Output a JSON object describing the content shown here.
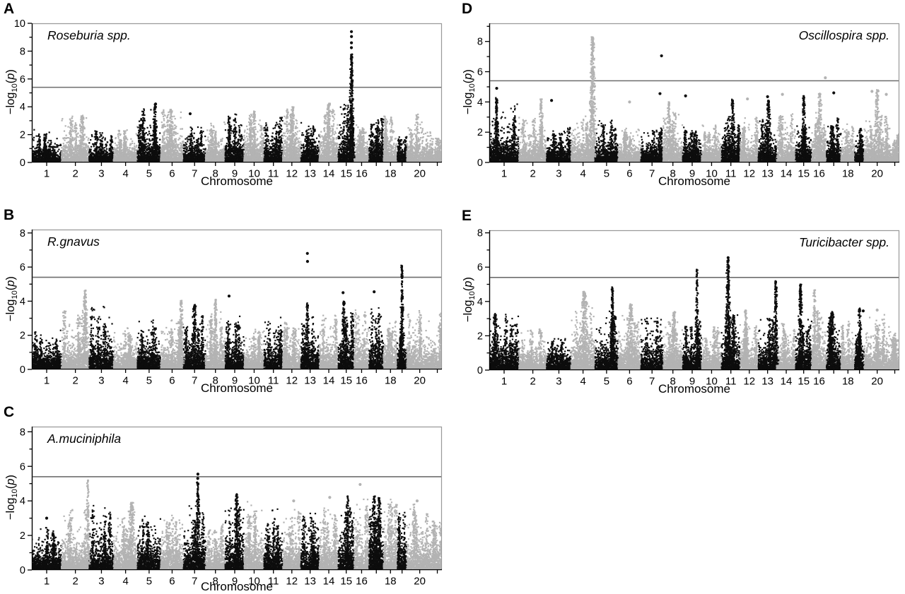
{
  "chart_data": {
    "type": "scatter",
    "figure_kind": "manhattan-gwas-panels",
    "xlabel": "Chromosome",
    "ylabel": {
      "pre": "−log",
      "sub": "10",
      "open": "(",
      "var": "p",
      "close": ")"
    },
    "colors": {
      "point_odd_chrom": "#0d0d0d",
      "point_even_chrom": "#b3b3b3",
      "significance_line": "#6e6e6e",
      "axis": "#000000",
      "border_light": "#999999",
      "text": "#000000",
      "background": "#ffffff"
    },
    "chrom_sizes": [
      195,
      182,
      160,
      157,
      152,
      150,
      145,
      129,
      124,
      131,
      122,
      120,
      120,
      125,
      104,
      98,
      95,
      91,
      61,
      171,
      60
    ],
    "xtick_labels": [
      "1",
      "2",
      "3",
      "4",
      "5",
      "6",
      "7",
      "8",
      "9",
      "10",
      "11",
      "12",
      "13",
      "14",
      "15",
      "16",
      "",
      "18",
      "",
      "20",
      ""
    ],
    "point_density": 4.3,
    "panels": [
      {
        "letter": "A",
        "title": "Roseburia spp.",
        "title_side": "left",
        "ylim": [
          0,
          10
        ],
        "y_axis_max": 10.0,
        "yticks": [
          0,
          2,
          4,
          6,
          8,
          10
        ],
        "yminor": [
          1,
          3,
          5,
          7,
          9
        ],
        "sig_line": 5.4,
        "base_max": [
          2.4,
          3.5,
          2.3,
          2.6,
          4.2,
          3.8,
          2.6,
          2.9,
          3.6,
          3.8,
          3.3,
          4.1,
          3.0,
          4.3,
          4.6,
          2.8,
          3.5,
          3.4,
          2.2,
          3.5,
          2.0
        ],
        "spikes": [
          {
            "c": 15,
            "f": 0.83,
            "h": 7.8,
            "w": 4.5,
            "n": 340
          },
          {
            "c": 5,
            "f": 0.75,
            "h": 4.2,
            "w": 4,
            "n": 140
          },
          {
            "c": 6,
            "f": 0.45,
            "h": 3.8,
            "w": 5,
            "n": 150
          },
          {
            "c": 10,
            "f": 0.5,
            "h": 3.7,
            "w": 4,
            "n": 120
          },
          {
            "c": 12,
            "f": 0.55,
            "h": 4.0,
            "w": 4,
            "n": 130
          },
          {
            "c": 14,
            "f": 0.5,
            "h": 4.25,
            "w": 4,
            "n": 140
          },
          {
            "c": 2,
            "f": 0.75,
            "h": 3.4,
            "w": 6,
            "n": 150
          }
        ],
        "dots": [
          {
            "c": 15,
            "f": 0.829,
            "v": 9.4
          },
          {
            "c": 15,
            "f": 0.832,
            "v": 9.05
          },
          {
            "c": 15,
            "f": 0.83,
            "v": 8.6
          },
          {
            "c": 15,
            "f": 0.827,
            "v": 8.25
          },
          {
            "c": 7,
            "f": 0.3,
            "v": 3.5
          },
          {
            "c": 5,
            "f": 0.78,
            "v": 4.2
          }
        ]
      },
      {
        "letter": "B",
        "title": "R.gnavus",
        "title_side": "left",
        "ylim": [
          0,
          8
        ],
        "y_axis_max": 8.2,
        "yticks": [
          0,
          2,
          4,
          6,
          8
        ],
        "yminor": [
          1,
          3,
          5,
          7
        ],
        "sig_line": 5.4,
        "base_max": [
          2.3,
          3.5,
          3.7,
          2.6,
          3.1,
          3.3,
          3.2,
          3.5,
          3.3,
          2.8,
          3.2,
          2.9,
          3.2,
          3.3,
          3.8,
          3.9,
          3.9,
          3.0,
          2.5,
          3.6,
          3.3
        ],
        "spikes": [
          {
            "c": 2,
            "f": 0.85,
            "h": 4.65,
            "w": 6,
            "n": 260
          },
          {
            "c": 6,
            "f": 0.9,
            "h": 4.1,
            "w": 4.5,
            "n": 170
          },
          {
            "c": 7,
            "f": 0.5,
            "h": 3.8,
            "w": 6,
            "n": 160
          },
          {
            "c": 8,
            "f": 0.5,
            "h": 4.1,
            "w": 4,
            "n": 140
          },
          {
            "c": 13,
            "f": 0.35,
            "h": 3.9,
            "w": 4,
            "n": 120
          },
          {
            "c": 15,
            "f": 0.35,
            "h": 4.0,
            "w": 5,
            "n": 130
          },
          {
            "c": 19,
            "f": 0.5,
            "h": 6.1,
            "w": 3.2,
            "n": 230
          }
        ],
        "dots": [
          {
            "c": 13,
            "f": 0.35,
            "v": 6.8
          },
          {
            "c": 13,
            "f": 0.357,
            "v": 6.33
          },
          {
            "c": 15,
            "f": 0.3,
            "v": 4.5
          },
          {
            "c": 17,
            "f": 0.35,
            "v": 4.55
          },
          {
            "c": 9,
            "f": 0.2,
            "v": 4.3
          }
        ]
      },
      {
        "letter": "C",
        "title": "A.muciniphila",
        "title_side": "left",
        "ylim": [
          0,
          8
        ],
        "y_axis_max": 8.3,
        "yticks": [
          0,
          2,
          4,
          6,
          8
        ],
        "yminor": [
          1,
          3,
          5,
          7
        ],
        "sig_line": 5.4,
        "base_max": [
          2.6,
          3.6,
          3.9,
          3.4,
          3.5,
          3.4,
          3.8,
          2.9,
          4.4,
          4.1,
          3.6,
          3.6,
          3.5,
          3.8,
          3.9,
          4.4,
          3.8,
          4.3,
          3.5,
          4.0,
          3.0
        ],
        "spikes": [
          {
            "c": 2,
            "f": 0.95,
            "h": 5.2,
            "w": 3,
            "n": 140
          },
          {
            "c": 4,
            "f": 0.75,
            "h": 3.9,
            "w": 8,
            "n": 220
          },
          {
            "c": 7,
            "f": 0.65,
            "h": 5.1,
            "w": 4.5,
            "n": 210
          },
          {
            "c": 9,
            "f": 0.6,
            "h": 4.4,
            "w": 4,
            "n": 110
          },
          {
            "c": 15,
            "f": 0.6,
            "h": 4.3,
            "w": 4,
            "n": 110
          },
          {
            "c": 17,
            "f": 0.35,
            "h": 4.3,
            "w": 6.5,
            "n": 170
          },
          {
            "c": 17,
            "f": 0.7,
            "h": 4.25,
            "w": 5,
            "n": 130
          }
        ],
        "dots": [
          {
            "c": 7,
            "f": 0.65,
            "v": 5.55
          },
          {
            "c": 7,
            "f": 0.643,
            "v": 5.3
          },
          {
            "c": 16,
            "f": 0.4,
            "v": 4.95
          },
          {
            "c": 14,
            "f": 0.55,
            "v": 4.2
          },
          {
            "c": 12,
            "f": 0.6,
            "v": 4.0
          },
          {
            "c": 20,
            "f": 0.4,
            "v": 4.0
          },
          {
            "c": 1,
            "f": 0.5,
            "v": 3.0
          }
        ]
      },
      {
        "letter": "D",
        "title": "Oscillospira spp.",
        "title_side": "right",
        "ylim": [
          0,
          8
        ],
        "y_axis_max": 9.2,
        "yticks": [
          0,
          2,
          4,
          6,
          8
        ],
        "yminor": [
          1,
          3,
          5,
          7,
          9
        ],
        "sig_line": 5.4,
        "base_max": [
          3.9,
          3.4,
          2.4,
          3.2,
          2.9,
          2.4,
          2.5,
          3.4,
          2.6,
          2.6,
          3.3,
          3.2,
          3.1,
          3.5,
          2.9,
          3.3,
          3.1,
          2.7,
          2.4,
          3.4,
          2.1
        ],
        "spikes": [
          {
            "c": 4,
            "f": 0.9,
            "h": 8.3,
            "w": 6,
            "n": 430
          },
          {
            "c": 1,
            "f": 0.25,
            "h": 4.3,
            "w": 4,
            "n": 170
          },
          {
            "c": 2,
            "f": 0.8,
            "h": 4.2,
            "w": 4,
            "n": 130
          },
          {
            "c": 8,
            "f": 0.3,
            "h": 4.0,
            "w": 5,
            "n": 140
          },
          {
            "c": 11,
            "f": 0.6,
            "h": 4.2,
            "w": 5,
            "n": 150
          },
          {
            "c": 13,
            "f": 0.55,
            "h": 4.1,
            "w": 5,
            "n": 140
          },
          {
            "c": 15,
            "f": 0.5,
            "h": 4.4,
            "w": 4,
            "n": 130
          },
          {
            "c": 16,
            "f": 0.55,
            "h": 4.6,
            "w": 5,
            "n": 160
          },
          {
            "c": 20,
            "f": 0.5,
            "h": 4.8,
            "w": 5,
            "n": 170
          }
        ],
        "dots": [
          {
            "c": 1,
            "f": 0.25,
            "v": 4.9
          },
          {
            "c": 3,
            "f": 0.2,
            "v": 4.1
          },
          {
            "c": 7,
            "f": 0.93,
            "v": 7.05
          },
          {
            "c": 7,
            "f": 0.86,
            "v": 4.55
          },
          {
            "c": 9,
            "f": 0.15,
            "v": 4.4
          },
          {
            "c": 13,
            "f": 0.5,
            "v": 4.35
          },
          {
            "c": 14,
            "f": 0.3,
            "v": 4.5
          },
          {
            "c": 16,
            "f": 0.92,
            "v": 5.6
          },
          {
            "c": 17,
            "f": 0.5,
            "v": 4.6
          },
          {
            "c": 20,
            "f": 0.3,
            "v": 4.7
          },
          {
            "c": 20,
            "f": 0.85,
            "v": 4.5
          },
          {
            "c": 6,
            "f": 0.5,
            "v": 4.0
          },
          {
            "c": 12,
            "f": 0.4,
            "v": 4.2
          }
        ]
      },
      {
        "letter": "E",
        "title": "Turicibacter spp.",
        "title_side": "right",
        "ylim": [
          0,
          8
        ],
        "y_axis_max": 8.15,
        "yticks": [
          0,
          2,
          4,
          6,
          8
        ],
        "yminor": [
          1,
          3,
          5,
          7
        ],
        "sig_line": 5.4,
        "base_max": [
          3.3,
          2.4,
          2.1,
          3.8,
          3.6,
          3.3,
          3.3,
          2.9,
          3.1,
          2.6,
          3.5,
          2.9,
          3.1,
          3.2,
          3.3,
          3.8,
          3.3,
          2.9,
          2.4,
          3.3,
          2.3
        ],
        "spikes": [
          {
            "c": 1,
            "f": 0.2,
            "h": 3.3,
            "w": 6,
            "n": 160
          },
          {
            "c": 4,
            "f": 0.55,
            "h": 4.6,
            "w": 9,
            "n": 300
          },
          {
            "c": 5,
            "f": 0.75,
            "h": 4.85,
            "w": 3.5,
            "n": 190
          },
          {
            "c": 6,
            "f": 0.55,
            "h": 3.85,
            "w": 7,
            "n": 210
          },
          {
            "c": 8,
            "f": 0.55,
            "h": 3.4,
            "w": 6,
            "n": 170
          },
          {
            "c": 9,
            "f": 0.75,
            "h": 5.9,
            "w": 2.8,
            "n": 160
          },
          {
            "c": 11,
            "f": 0.35,
            "h": 6.55,
            "w": 4.5,
            "n": 320
          },
          {
            "c": 12,
            "f": 0.3,
            "h": 3.5,
            "w": 5,
            "n": 130
          },
          {
            "c": 13,
            "f": 0.95,
            "h": 5.2,
            "w": 4,
            "n": 230
          },
          {
            "c": 15,
            "f": 0.3,
            "h": 5.0,
            "w": 4,
            "n": 230
          },
          {
            "c": 16,
            "f": 0.2,
            "h": 4.7,
            "w": 4,
            "n": 160
          },
          {
            "c": 17,
            "f": 0.4,
            "h": 3.4,
            "w": 5,
            "n": 130
          },
          {
            "c": 19,
            "f": 0.5,
            "h": 3.6,
            "w": 4,
            "n": 110
          }
        ],
        "dots": [
          {
            "c": 11,
            "f": 0.352,
            "v": 6.55
          },
          {
            "c": 19,
            "f": 0.9,
            "v": 3.45
          },
          {
            "c": 20,
            "f": 0.5,
            "v": 3.5
          }
        ]
      }
    ]
  }
}
